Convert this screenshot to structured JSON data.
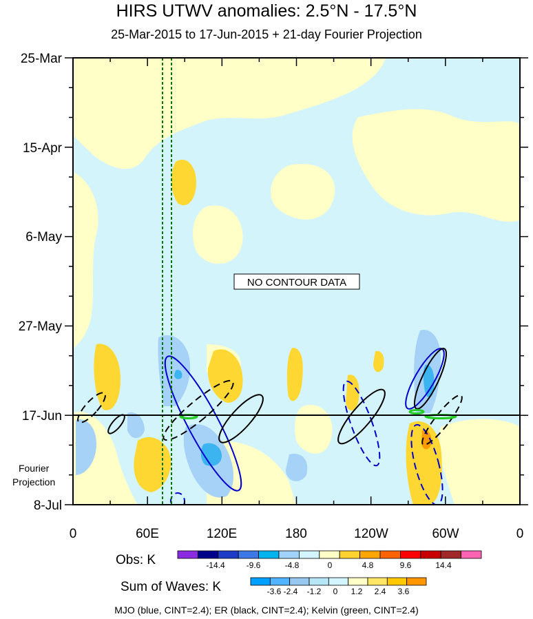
{
  "title": "HIRS UTWV anomalies: 2.5°N - 17.5°N",
  "subtitle": "25-Mar-2015 to 17-Jun-2015 + 21-day Fourier Projection",
  "chart_data": {
    "type": "heatmap",
    "x_ticks": [
      "0",
      "60E",
      "120E",
      "180",
      "120W",
      "60W",
      "0"
    ],
    "y_ticks": [
      "25-Mar",
      "15-Apr",
      "6-May",
      "27-May",
      "17-Jun",
      "8-Jul"
    ],
    "y_side_label": [
      "Fourier",
      "Projection"
    ],
    "annotation": "NO CONTOUR DATA",
    "obs_colorbar": {
      "label": "Obs: K",
      "tick_labels": [
        "-14.4",
        "-9.6",
        "-4.8",
        "0",
        "4.8",
        "9.6",
        "14.4"
      ],
      "colors": [
        "#8a2be2",
        "#00008b",
        "#1e3cc8",
        "#3c78e6",
        "#00b4f0",
        "#a0d2fa",
        "#d2f5ff",
        "#ffffc8",
        "#ffd232",
        "#ffa500",
        "#ff6400",
        "#ff0000",
        "#c80000",
        "#a02828",
        "#ff64b4"
      ]
    },
    "sow_colorbar": {
      "label": "Sum of Waves: K",
      "tick_labels": [
        "-3.6",
        "-2.4",
        "-1.2",
        "0",
        "1.2",
        "2.4",
        "3.6"
      ],
      "colors": [
        "#00a0ff",
        "#50b4ff",
        "#96c8f0",
        "#b4e6f5",
        "#d2f5ff",
        "#ffffc8",
        "#ffe664",
        "#ffc800",
        "#ff9600"
      ]
    },
    "footnote": "MJO (blue, CINT=2.4); ER (black, CINT=2.4); Kelvin (green, CINT=2.4)",
    "series_colors": {
      "mjo": "#0000cd",
      "er": "#000000",
      "kelvin": "#22cc22",
      "region_lines": "#007700"
    }
  }
}
